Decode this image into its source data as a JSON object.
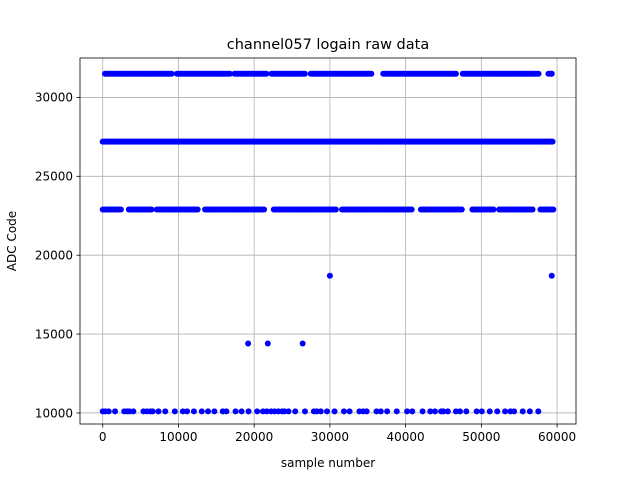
{
  "chart_data": {
    "type": "scatter",
    "title": "channel057 logain raw data",
    "xlabel": "sample number",
    "ylabel": "ADC Code",
    "xlim": [
      -3000,
      62500
    ],
    "ylim": [
      9300,
      32500
    ],
    "xticks": [
      0,
      10000,
      20000,
      30000,
      40000,
      50000,
      60000
    ],
    "yticks": [
      10000,
      15000,
      20000,
      25000,
      30000
    ],
    "grid": true,
    "marker_color": "#0000ff",
    "series": [
      {
        "values": [
          {
            "x_range": [
              0,
              59500
            ],
            "y": 27200,
            "density": "continuous"
          },
          {
            "x_range": [
              0,
              59500
            ],
            "y": 22900,
            "density": "dense"
          },
          {
            "x_range": [
              300,
              59300
            ],
            "y": 31500,
            "density": "dense"
          },
          {
            "x_range": [
              0,
              57800
            ],
            "y": 10100,
            "density": "sparse"
          },
          {
            "x": 19200,
            "y": 14400
          },
          {
            "x": 21800,
            "y": 14400
          },
          {
            "x": 26400,
            "y": 14400
          },
          {
            "x": 30000,
            "y": 18700
          },
          {
            "x": 59300,
            "y": 18700
          }
        ]
      }
    ]
  }
}
